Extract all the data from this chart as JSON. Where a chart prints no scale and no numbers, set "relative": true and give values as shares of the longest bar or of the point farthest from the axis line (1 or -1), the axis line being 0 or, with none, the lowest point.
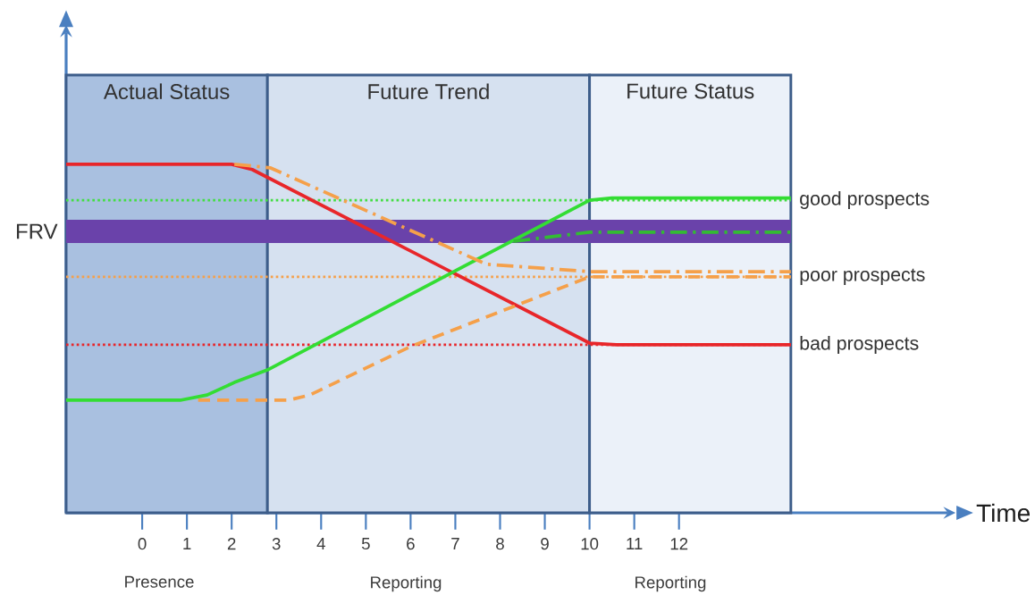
{
  "chart_data": {
    "type": "line",
    "relative": true,
    "xlabel": "Time",
    "xlim": [
      -1.7,
      18.0
    ],
    "xticks": [
      0,
      1,
      2,
      3,
      4,
      5,
      6,
      7,
      8,
      9,
      10,
      11,
      12
    ],
    "marker": "none",
    "series": [
      {
        "color": "#e8262a",
        "line_style": "solid",
        "x": [
          -1.7,
          2.0,
          2.46,
          10,
          10.6,
          14.5
        ],
        "values": [
          1.0,
          1.0,
          0.985,
          0.487,
          0.482,
          0.482
        ]
      },
      {
        "color": "#33dd33",
        "line_style": "solid",
        "x": [
          -1.7,
          0.85,
          1.45,
          2.06,
          2.8,
          10,
          10.5,
          14.5
        ],
        "values": [
          0.323,
          0.323,
          0.338,
          0.374,
          0.41,
          0.897,
          0.903,
          0.903
        ]
      },
      {
        "color": "#f5a04a",
        "line_style": "dashed",
        "x": [
          1.25,
          3.27,
          3.75,
          6,
          10,
          14.5
        ],
        "values": [
          0.323,
          0.323,
          0.338,
          0.477,
          0.677,
          0.677
        ]
      },
      {
        "color": "#f5a04a",
        "line_style": "dashdot",
        "x": [
          2.06,
          2.86,
          7.7,
          10,
          14.5
        ],
        "values": [
          1.0,
          0.99,
          0.713,
          0.692,
          0.692
        ]
      },
      {
        "color": "#33bb33",
        "line_style": "dashdot",
        "x": [
          8.3,
          10,
          14.5
        ],
        "values": [
          0.779,
          0.805,
          0.805
        ]
      }
    ],
    "bands": [
      {
        "axis": "x",
        "from": -1.7,
        "to": 2.8,
        "label": "Actual Status",
        "color": "#a9c0e0"
      },
      {
        "axis": "x",
        "from": 2.8,
        "to": 10,
        "label": "Future Trend",
        "color": "#d6e1f0"
      },
      {
        "axis": "x",
        "from": 10,
        "to": 14.5,
        "label": "Future Status",
        "color": "#ebf1f9"
      },
      {
        "axis": "y",
        "from": 0.774,
        "to": 0.841,
        "label": "FRV",
        "color": "#6a42aa"
      }
    ],
    "ref_lines": [
      {
        "axis": "y",
        "value": 0.897,
        "label": "good prospects",
        "color": "#44dd44",
        "line_style": "dotted"
      },
      {
        "axis": "y",
        "value": 0.677,
        "label": "poor prospects",
        "color": "#f5a04a",
        "line_style": "dotted"
      },
      {
        "axis": "y",
        "value": 0.482,
        "label": "bad prospects",
        "color": "#e8262a",
        "line_style": "dotted"
      }
    ],
    "annotations": [
      "Presence",
      "Reporting",
      "Reporting"
    ]
  }
}
